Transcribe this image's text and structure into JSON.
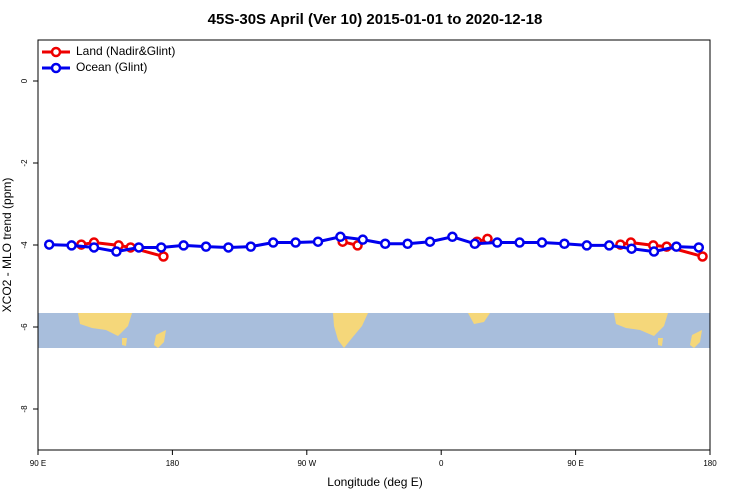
{
  "chart_data": {
    "type": "line",
    "title": "45S-30S April (Ver 10)   2015-01-01 to 2020-12-18",
    "x_label": "Longitude (deg E)",
    "y_label": "XCO2 - MLO trend (ppm)",
    "xlim": [
      90,
      540
    ],
    "ylim": [
      -9,
      1
    ],
    "xticks": [
      {
        "value": 90,
        "label": "90 E"
      },
      {
        "value": 180,
        "label": "180"
      },
      {
        "value": 270,
        "label": "90 W"
      },
      {
        "value": 360,
        "label": "0"
      },
      {
        "value": 450,
        "label": "90 E"
      },
      {
        "value": 540,
        "label": "180"
      }
    ],
    "yticks": [
      0,
      -2,
      -4,
      -6,
      -8
    ],
    "legend": "top-left",
    "series": [
      {
        "name": "Land (Nadir&Glint)",
        "color": "#ee0000",
        "x": [
          119,
          127.5,
          144,
          152,
          174,
          null,
          294,
          304,
          null,
          384,
          391,
          null,
          480,
          487,
          502,
          511,
          535
        ],
        "values": [
          -3.99,
          -3.94,
          -4.01,
          -4.06,
          -4.28,
          null,
          -3.92,
          -4.01,
          null,
          -3.92,
          -3.85,
          null,
          -3.99,
          -3.94,
          -4.01,
          -4.04,
          -4.28
        ]
      },
      {
        "name": "Ocean (Glint)",
        "color": "#0000ee",
        "x": [
          97.5,
          112.5,
          127.5,
          142.5,
          157.5,
          172.5,
          187.5,
          202.5,
          217.5,
          232.5,
          247.5,
          262.5,
          277.5,
          292.5,
          307.5,
          322.5,
          337.5,
          352.5,
          367.5,
          382.5,
          397.5,
          412.5,
          427.5,
          442.5,
          457.5,
          472.5,
          487.5,
          502.5,
          517.5,
          532.5
        ],
        "values": [
          -3.99,
          -4.01,
          -4.06,
          -4.16,
          -4.06,
          -4.06,
          -4.01,
          -4.04,
          -4.06,
          -4.04,
          -3.94,
          -3.94,
          -3.92,
          -3.8,
          -3.87,
          -3.97,
          -3.97,
          -3.92,
          -3.8,
          -3.97,
          -3.94,
          -3.94,
          -3.94,
          -3.97,
          -4.01,
          -4.01,
          -4.09,
          -4.16,
          -4.04,
          -4.06
        ]
      }
    ]
  }
}
